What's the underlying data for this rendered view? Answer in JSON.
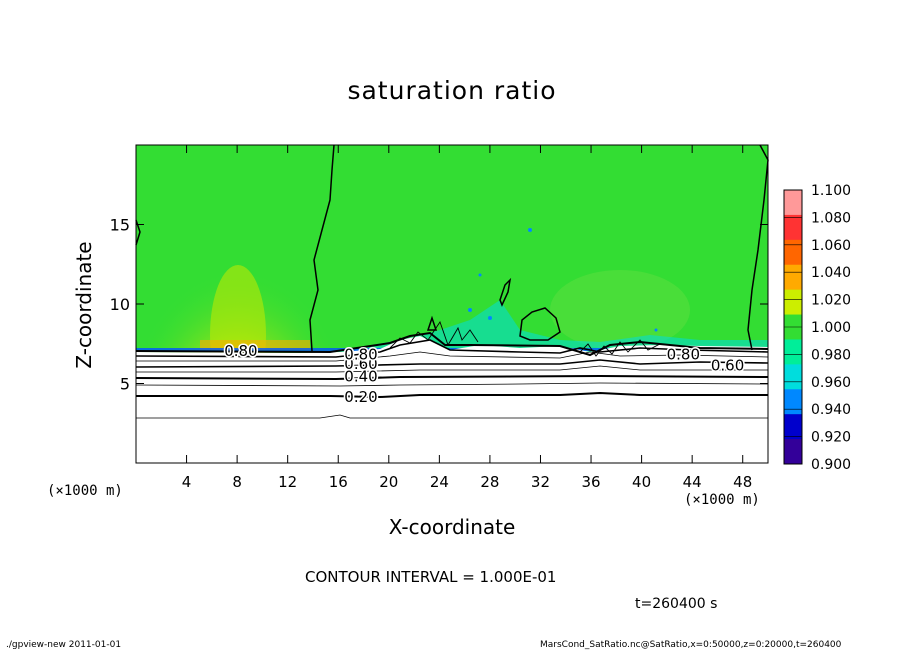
{
  "chart_data": {
    "type": "heatmap",
    "title": "saturation ratio",
    "xlabel": "X-coordinate",
    "ylabel": "Z-coordinate",
    "x_unit_label": "(×1000 m)",
    "x_ticks": [
      4,
      8,
      12,
      16,
      20,
      24,
      28,
      32,
      36,
      40,
      44,
      48
    ],
    "y_ticks": [
      5,
      10,
      15
    ],
    "xlim": [
      0,
      50
    ],
    "ylim": [
      0,
      20
    ],
    "colorbar": {
      "labels": [
        "1.100",
        "1.080",
        "1.060",
        "1.040",
        "1.020",
        "1.000",
        "0.980",
        "0.960",
        "0.940",
        "0.920",
        "0.900"
      ],
      "colors": [
        "#ff9999",
        "#ff3333",
        "#ff6600",
        "#ffaa00",
        "#ccee00",
        "#33dd33",
        "#00ee99",
        "#00dddd",
        "#0088ff",
        "#0000cc",
        "#330099",
        "#7700aa"
      ]
    },
    "contour_labels": [
      {
        "text": "0.20",
        "x": 17.8,
        "z": 4.2
      },
      {
        "text": "0.40",
        "x": 17.8,
        "z": 5.5
      },
      {
        "text": "0.60",
        "x": 17.8,
        "z": 6.3
      },
      {
        "text": "0.80",
        "x": 17.8,
        "z": 6.9
      },
      {
        "text": "0.80",
        "x": 8.3,
        "z": 7.1
      },
      {
        "text": "0.80",
        "x": 43.3,
        "z": 6.9
      },
      {
        "text": "0.60",
        "x": 46.8,
        "z": 6.2
      }
    ],
    "contour_interval_text": "CONTOUR INTERVAL = 1.000E-01",
    "time_text": "t=260400 s"
  },
  "footer": {
    "left": "./gpview-new  2011-01-01",
    "right": "MarsCond_SatRatio.nc@SatRatio,x=0:50000,z=0:20000,t=260400"
  }
}
